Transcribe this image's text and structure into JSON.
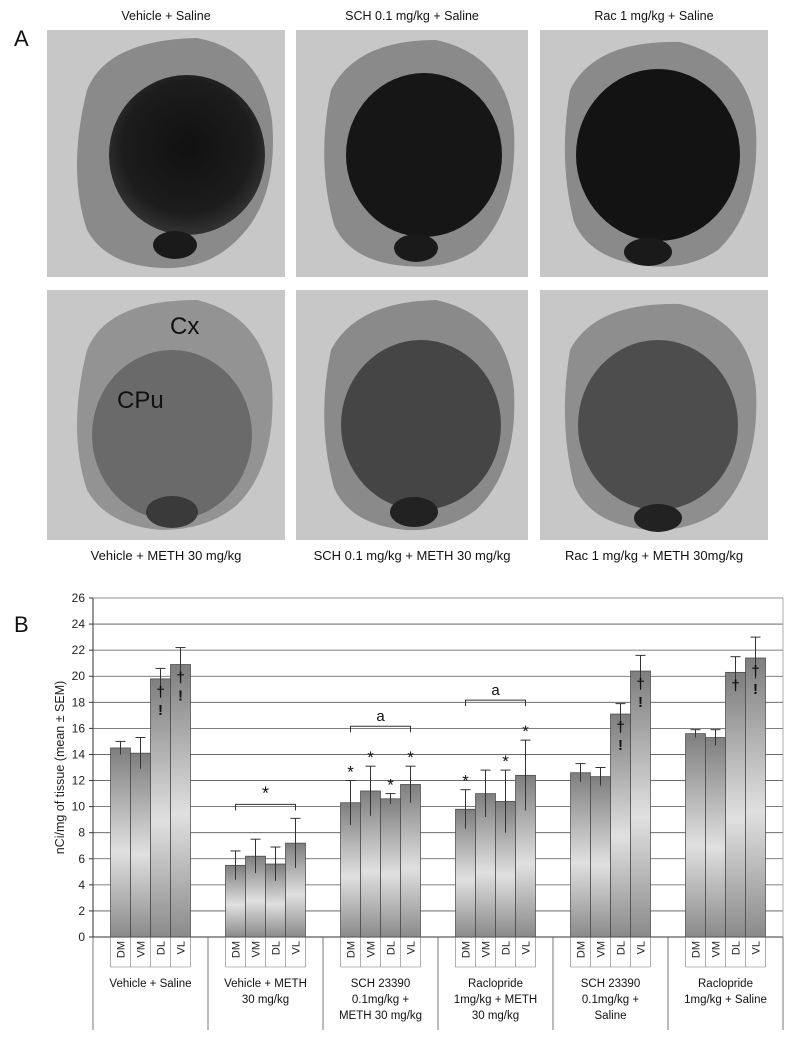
{
  "panel_a": {
    "letter": "A",
    "top_captions": [
      "Vehicle + Saline",
      "SCH 0.1 mg/kg + Saline",
      "Rac 1 mg/kg + Saline"
    ],
    "bottom_captions": [
      "Vehicle + METH 30 mg/kg",
      "SCH 0.1 mg/kg + METH 30 mg/kg",
      "Rac 1 mg/kg + METH 30mg/kg"
    ],
    "region_labels": {
      "cortex": "Cx",
      "striatum": "CPu"
    }
  },
  "panel_b": {
    "letter": "B"
  },
  "chart_data": {
    "type": "bar",
    "ylabel": "nCi/mg of tissue (mean ± SEM)",
    "ylim": [
      0,
      26
    ],
    "yticks": [
      0,
      2,
      4,
      6,
      8,
      10,
      12,
      14,
      16,
      18,
      20,
      22,
      24,
      26
    ],
    "grid": true,
    "subcategories": [
      "DM",
      "VM",
      "DL",
      "VL"
    ],
    "groups": [
      {
        "label_lines": [
          "Vehicle + Saline"
        ],
        "values": [
          14.5,
          14.1,
          19.8,
          20.9
        ],
        "errors": [
          0.5,
          1.2,
          0.8,
          1.3
        ],
        "marks": [
          "",
          "",
          "†!",
          "†!"
        ],
        "bracket": null
      },
      {
        "label_lines": [
          "Vehicle + METH",
          "30 mg/kg"
        ],
        "values": [
          5.5,
          6.2,
          5.6,
          7.2
        ],
        "errors": [
          1.1,
          1.3,
          1.3,
          1.9
        ],
        "marks": [
          "",
          "",
          "",
          ""
        ],
        "bracket": "*"
      },
      {
        "label_lines": [
          "SCH 23390",
          "0.1mg/kg +",
          "METH 30 mg/kg"
        ],
        "values": [
          10.3,
          11.2,
          10.6,
          11.7
        ],
        "errors": [
          1.7,
          1.9,
          0.4,
          1.4
        ],
        "marks": [
          "*",
          "*",
          "*",
          "*"
        ],
        "bracket": "a"
      },
      {
        "label_lines": [
          "Raclopride",
          "1mg/kg + METH",
          "30 mg/kg"
        ],
        "values": [
          9.8,
          11.0,
          10.4,
          12.4
        ],
        "errors": [
          1.5,
          1.8,
          2.4,
          2.7
        ],
        "marks": [
          "*",
          "",
          "*",
          "*"
        ],
        "bracket": "a"
      },
      {
        "label_lines": [
          "SCH 23390",
          "0.1mg/kg +",
          "Saline"
        ],
        "values": [
          12.6,
          12.3,
          17.1,
          20.4
        ],
        "errors": [
          0.7,
          0.7,
          0.8,
          1.2
        ],
        "marks": [
          "",
          "",
          "†!",
          "†!"
        ],
        "bracket": null
      },
      {
        "label_lines": [
          "Raclopride",
          "1mg/kg + Saline"
        ],
        "values": [
          15.6,
          15.3,
          20.3,
          21.4
        ],
        "errors": [
          0.3,
          0.6,
          1.2,
          1.6
        ],
        "marks": [
          "",
          "",
          "†",
          "†!"
        ],
        "bracket": null
      }
    ]
  }
}
